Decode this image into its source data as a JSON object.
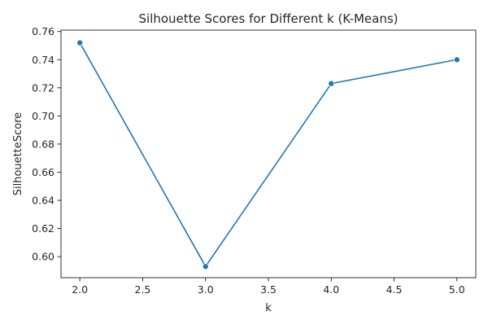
{
  "chart_data": {
    "type": "line",
    "title": "Silhouette Scores for Different k (K-Means)",
    "xlabel": "k",
    "ylabel": "SilhouetteScore",
    "x": [
      2,
      3,
      4,
      5
    ],
    "series": [
      {
        "values": [
          0.752,
          0.593,
          0.723,
          0.74
        ]
      }
    ],
    "xlim": [
      1.85,
      5.15
    ],
    "ylim": [
      0.585,
      0.761
    ],
    "xticks": [
      2.0,
      2.5,
      3.0,
      3.5,
      4.0,
      4.5,
      5.0
    ],
    "xtick_labels": [
      "2.0",
      "2.5",
      "3.0",
      "3.5",
      "4.0",
      "4.5",
      "5.0"
    ],
    "yticks": [
      0.6,
      0.62,
      0.64,
      0.66,
      0.68,
      0.7,
      0.72,
      0.74,
      0.76
    ],
    "ytick_labels": [
      "0.60",
      "0.62",
      "0.64",
      "0.66",
      "0.68",
      "0.70",
      "0.72",
      "0.74",
      "0.76"
    ],
    "grid": false,
    "markers": true,
    "line_color": "#1f77b4",
    "marker_color": "#1f77b4"
  }
}
